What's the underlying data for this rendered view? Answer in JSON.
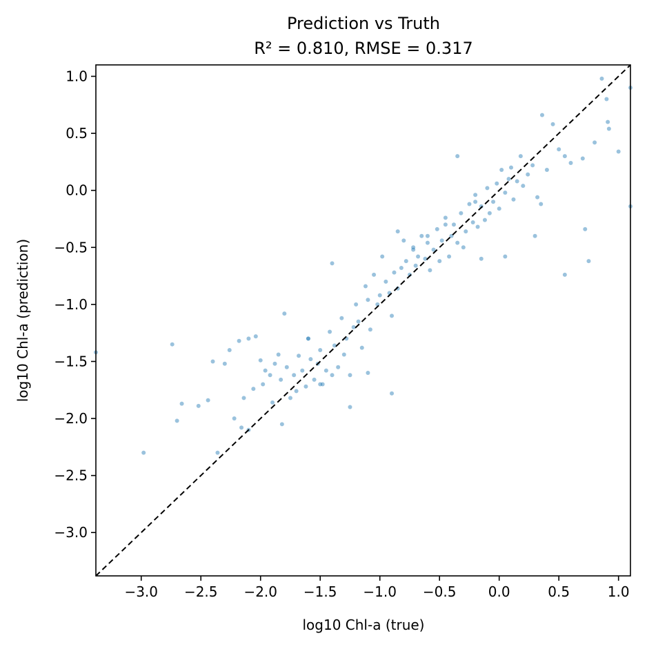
{
  "chart_data": {
    "type": "scatter",
    "title": "Prediction vs Truth",
    "subtitle": "R² = 0.810, RMSE = 0.317",
    "xlabel": "log10 Chl-a (true)",
    "ylabel": "log10 Chl-a (prediction)",
    "xlim": [
      -3.38,
      1.1
    ],
    "ylim": [
      -3.38,
      1.1
    ],
    "grid": false,
    "xticks": [
      -3.0,
      -2.5,
      -2.0,
      -1.5,
      -1.0,
      -0.5,
      0.0,
      0.5,
      1.0
    ],
    "yticks": [
      -3.0,
      -2.5,
      -2.0,
      -1.5,
      -1.0,
      -0.5,
      0.0,
      0.5,
      1.0
    ],
    "xtick_labels": [
      "−3.0",
      "−2.5",
      "−2.0",
      "−1.5",
      "−1.0",
      "−0.5",
      "0.0",
      "0.5",
      "1.0"
    ],
    "ytick_labels": [
      "−3.0",
      "−2.5",
      "−2.0",
      "−1.5",
      "−1.0",
      "−0.5",
      "0.0",
      "0.5",
      "1.0"
    ],
    "marker_color": "#1f77b4",
    "marker_alpha": 0.45,
    "reference_line": {
      "style": "dashed",
      "color": "#000000",
      "from": [
        -3.38,
        -3.38
      ],
      "to": [
        1.1,
        1.1
      ]
    },
    "series": [
      {
        "x": [
          -3.38,
          -2.98,
          -2.74,
          -2.7,
          -2.66,
          -2.52,
          -2.44,
          -2.4,
          -2.36,
          -2.3,
          -2.26,
          -2.22,
          -2.18,
          -2.16,
          -2.14,
          -2.1,
          -2.06,
          -2.04,
          -2.0,
          -1.98,
          -1.96,
          -1.92,
          -1.9,
          -1.88,
          -1.85,
          -1.83,
          -1.8,
          -1.78,
          -1.75,
          -1.72,
          -1.7,
          -1.68,
          -1.65,
          -1.62,
          -1.6,
          -1.58,
          -1.55,
          -1.52,
          -1.5,
          -1.48,
          -1.45,
          -1.42,
          -1.4,
          -1.38,
          -1.35,
          -1.32,
          -1.3,
          -1.28,
          -1.25,
          -1.22,
          -1.2,
          -1.18,
          -1.15,
          -1.12,
          -1.1,
          -1.08,
          -1.05,
          -1.02,
          -1.0,
          -0.98,
          -0.95,
          -0.92,
          -0.9,
          -0.88,
          -0.85,
          -0.82,
          -0.8,
          -0.78,
          -0.75,
          -0.72,
          -0.7,
          -0.68,
          -0.65,
          -0.62,
          -0.6,
          -0.58,
          -0.55,
          -0.52,
          -0.5,
          -0.48,
          -0.45,
          -0.42,
          -0.4,
          -0.38,
          -0.35,
          -0.32,
          -0.3,
          -0.28,
          -0.25,
          -0.22,
          -0.2,
          -0.18,
          -0.15,
          -0.12,
          -0.1,
          -0.08,
          -0.05,
          -0.02,
          0.0,
          0.02,
          0.05,
          0.08,
          0.1,
          0.12,
          0.15,
          0.18,
          0.2,
          0.24,
          0.28,
          0.32,
          0.36,
          0.4,
          0.45,
          0.5,
          0.55,
          0.6,
          0.7,
          0.75,
          0.8,
          0.86,
          0.9,
          0.91,
          0.92,
          1.0,
          1.1,
          1.1,
          -1.82,
          -1.5,
          -1.4,
          -0.9,
          -0.85,
          -0.6,
          -0.2,
          0.3,
          0.55,
          0.72,
          -0.35,
          -1.6,
          -1.1,
          -0.45,
          -0.72,
          0.05,
          -0.15,
          0.35,
          -1.25,
          -2.1
        ],
        "y": [
          -1.42,
          -2.3,
          -1.35,
          -2.02,
          -1.87,
          -1.89,
          -1.84,
          -1.5,
          -2.3,
          -1.52,
          -1.4,
          -2.0,
          -1.32,
          -2.08,
          -1.82,
          -1.3,
          -1.74,
          -1.28,
          -1.49,
          -1.7,
          -1.58,
          -1.62,
          -1.86,
          -1.52,
          -1.44,
          -1.66,
          -1.08,
          -1.55,
          -1.82,
          -1.62,
          -1.76,
          -1.45,
          -1.58,
          -1.72,
          -1.3,
          -1.48,
          -1.66,
          -1.52,
          -1.4,
          -1.7,
          -1.58,
          -1.24,
          -1.62,
          -1.36,
          -1.55,
          -1.12,
          -1.44,
          -1.3,
          -1.62,
          -1.2,
          -1.0,
          -1.15,
          -1.38,
          -0.84,
          -0.96,
          -1.22,
          -0.74,
          -1.0,
          -0.92,
          -0.58,
          -0.8,
          -0.9,
          -1.1,
          -0.72,
          -0.86,
          -0.68,
          -0.44,
          -0.62,
          -0.74,
          -0.52,
          -0.66,
          -0.58,
          -0.4,
          -0.6,
          -0.46,
          -0.7,
          -0.52,
          -0.34,
          -0.62,
          -0.44,
          -0.24,
          -0.58,
          -0.4,
          -0.3,
          -0.46,
          -0.2,
          -0.5,
          -0.36,
          -0.12,
          -0.28,
          -0.04,
          -0.32,
          -0.14,
          -0.26,
          0.02,
          -0.2,
          -0.1,
          0.06,
          -0.16,
          0.18,
          -0.02,
          0.1,
          0.2,
          -0.08,
          0.08,
          0.3,
          0.04,
          0.14,
          0.22,
          -0.06,
          0.66,
          0.18,
          0.58,
          0.36,
          0.3,
          0.24,
          0.28,
          -0.62,
          0.42,
          0.98,
          0.8,
          0.6,
          0.54,
          0.34,
          0.9,
          -0.14,
          -2.05,
          -1.7,
          -0.64,
          -1.78,
          -0.36,
          -0.4,
          -0.1,
          -0.4,
          -0.74,
          -0.34,
          0.3,
          -1.3,
          -1.6,
          -0.3,
          -0.5,
          -0.58,
          -0.6,
          -0.12,
          -1.9,
          -2.1
        ]
      }
    ]
  }
}
